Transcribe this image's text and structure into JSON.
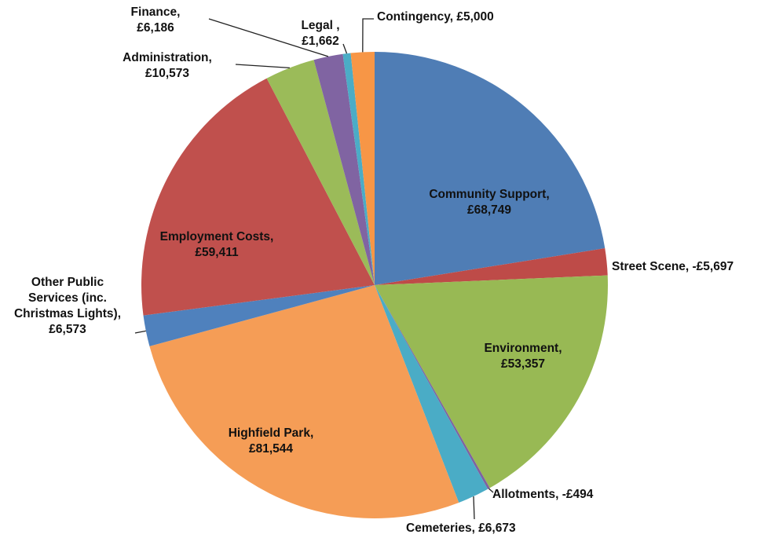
{
  "chart_data": {
    "type": "pie",
    "title": "",
    "slices": [
      {
        "name": "Community Support",
        "value": 68749,
        "value_label": "£68,749",
        "color": "#4F7DB5"
      },
      {
        "name": "Street Scene",
        "value": -5697,
        "value_label": "-£5,697",
        "color": "#BE4B48"
      },
      {
        "name": "Environment",
        "value": 53357,
        "value_label": "£53,357",
        "color": "#98B954"
      },
      {
        "name": "Allotments",
        "value": -494,
        "value_label": "-£494",
        "color": "#7E62A1"
      },
      {
        "name": "Cemeteries",
        "value": 6673,
        "value_label": "£6,673",
        "color": "#4AACC6"
      },
      {
        "name": "Highfield Park",
        "value": 81544,
        "value_label": "£81,544",
        "color": "#F59D56"
      },
      {
        "name": "Other Public Services (inc. Christmas Lights)",
        "value": 6573,
        "value_label": "£6,573",
        "color": "#4F81BD"
      },
      {
        "name": "Employment Costs",
        "value": 59411,
        "value_label": "£59,411",
        "color": "#C0504D"
      },
      {
        "name": "Administration",
        "value": 10573,
        "value_label": "£10,573",
        "color": "#9BBB59"
      },
      {
        "name": "Finance",
        "value": 6186,
        "value_label": "£6,186",
        "color": "#8064A2"
      },
      {
        "name": "Legal",
        "value": 1662,
        "value_label": "£1,662",
        "color": "#4BACC6"
      },
      {
        "name": "Contingency",
        "value": 5000,
        "value_label": "£5,000",
        "color": "#F79646"
      }
    ],
    "labels": [
      {
        "lines": [
          "Community Support,",
          "£68,749"
        ]
      },
      {
        "lines": [
          "Street Scene, -£5,697"
        ]
      },
      {
        "lines": [
          "Environment,",
          "£53,357"
        ]
      },
      {
        "lines": [
          "Allotments, -£494"
        ]
      },
      {
        "lines": [
          "Cemeteries, £6,673"
        ]
      },
      {
        "lines": [
          "Highfield Park,",
          "£81,544"
        ]
      },
      {
        "lines": [
          "Other Public",
          "Services (inc.",
          "Christmas Lights),",
          "£6,573"
        ]
      },
      {
        "lines": [
          "Employment Costs,",
          "£59,411"
        ]
      },
      {
        "lines": [
          "Administration,",
          "£10,573"
        ]
      },
      {
        "lines": [
          "Finance,",
          "£6,186"
        ]
      },
      {
        "lines": [
          "Legal ,",
          "£1,662"
        ]
      },
      {
        "lines": [
          "Contingency, £5,000"
        ]
      }
    ]
  }
}
